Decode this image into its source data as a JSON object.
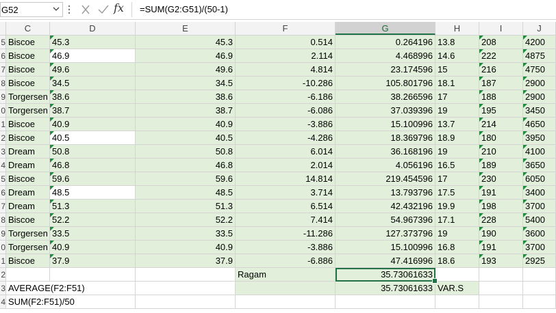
{
  "namebox": {
    "value": "G52"
  },
  "formula": {
    "value": "=SUM(G2:G51)/(50-1)"
  },
  "columns": [
    "C",
    "D",
    "E",
    "F",
    "G",
    "H",
    "I",
    "J"
  ],
  "row_numbers": [
    "5",
    "6",
    "7",
    "8",
    "9",
    "0",
    "1",
    "2",
    "3",
    "4",
    "5",
    "6",
    "7",
    "8",
    "9",
    "0",
    "1",
    "2",
    "3",
    "4"
  ],
  "rows": [
    {
      "c": "Biscoe",
      "d": "45.3",
      "e": "45.3",
      "f": "0.514",
      "g": "0.264196",
      "h": "13.8",
      "i": "208",
      "j": "4200"
    },
    {
      "c": "Biscoe",
      "d": "46.9",
      "e": "46.9",
      "f": "2.114",
      "g": "4.468996",
      "h": "14.6",
      "i": "222",
      "j": "4875"
    },
    {
      "c": "Biscoe",
      "d": "49.6",
      "e": "49.6",
      "f": "4.814",
      "g": "23.174596",
      "h": "15",
      "i": "216",
      "j": "4750"
    },
    {
      "c": "Biscoe",
      "d": "34.5",
      "e": "34.5",
      "f": "-10.286",
      "g": "105.801796",
      "h": "18.1",
      "i": "187",
      "j": "2900"
    },
    {
      "c": "Torgersen",
      "d": "38.6",
      "e": "38.6",
      "f": "-6.186",
      "g": "38.266596",
      "h": "17",
      "i": "188",
      "j": "2900"
    },
    {
      "c": "Torgersen",
      "d": "38.7",
      "e": "38.7",
      "f": "-6.086",
      "g": "37.039396",
      "h": "19",
      "i": "195",
      "j": "3450"
    },
    {
      "c": "Biscoe",
      "d": "40.9",
      "e": "40.9",
      "f": "-3.886",
      "g": "15.100996",
      "h": "13.7",
      "i": "214",
      "j": "4650"
    },
    {
      "c": "Biscoe",
      "d": "40.5",
      "e": "40.5",
      "f": "-4.286",
      "g": "18.369796",
      "h": "18.9",
      "i": "180",
      "j": "3950"
    },
    {
      "c": "Dream",
      "d": "50.8",
      "e": "50.8",
      "f": "6.014",
      "g": "36.168196",
      "h": "19",
      "i": "210",
      "j": "4100"
    },
    {
      "c": "Dream",
      "d": "46.8",
      "e": "46.8",
      "f": "2.014",
      "g": "4.056196",
      "h": "16.5",
      "i": "189",
      "j": "3650"
    },
    {
      "c": "Biscoe",
      "d": "59.6",
      "e": "59.6",
      "f": "14.814",
      "g": "219.454596",
      "h": "17",
      "i": "230",
      "j": "6050"
    },
    {
      "c": "Dream",
      "d": "48.5",
      "e": "48.5",
      "f": "3.714",
      "g": "13.793796",
      "h": "17.5",
      "i": "191",
      "j": "3400"
    },
    {
      "c": "Dream",
      "d": "51.3",
      "e": "51.3",
      "f": "6.514",
      "g": "42.432196",
      "h": "19.9",
      "i": "198",
      "j": "3700"
    },
    {
      "c": "Biscoe",
      "d": "52.2",
      "e": "52.2",
      "f": "7.414",
      "g": "54.967396",
      "h": "17.1",
      "i": "228",
      "j": "5400"
    },
    {
      "c": "Torgersen",
      "d": "33.5",
      "e": "33.5",
      "f": "-11.286",
      "g": "127.373796",
      "h": "19",
      "i": "190",
      "j": "3600"
    },
    {
      "c": "Torgersen",
      "d": "40.9",
      "e": "40.9",
      "f": "-3.886",
      "g": "15.100996",
      "h": "16.8",
      "i": "191",
      "j": "3700"
    },
    {
      "c": "Biscoe",
      "d": "37.9",
      "e": "37.9",
      "f": "-6.886",
      "g": "47.416996",
      "h": "18.6",
      "i": "193",
      "j": "2925"
    }
  ],
  "white_d_rows": [
    1,
    7,
    11
  ],
  "summary": {
    "ragam_label": "Ragam",
    "ragam_value": "35.73061633",
    "avg_label": "AVERAGE(F2:F51)",
    "vars_value": "35.73061633",
    "vars_label": "VAR.S",
    "sum_label": "SUM(F2:F51)/50"
  }
}
